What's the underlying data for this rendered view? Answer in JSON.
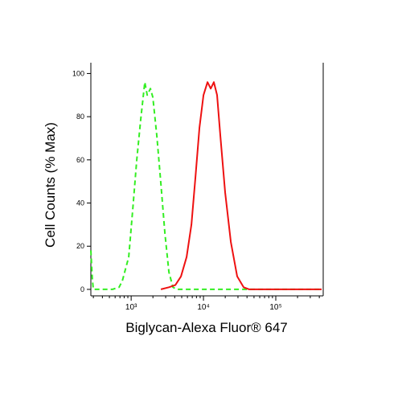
{
  "chart_data": {
    "type": "line",
    "x_label": "Biglycan-Alexa Fluor® 647",
    "y_label": "Cell Counts (% Max)",
    "xscale": "log",
    "xlim": [
      277,
      453000
    ],
    "ylim": [
      -3,
      105
    ],
    "yticks": [
      0,
      20,
      40,
      60,
      80,
      100
    ],
    "xticks": [
      {
        "value": 1000,
        "label": "10³"
      },
      {
        "value": 10000,
        "label": "10⁴"
      },
      {
        "value": 100000,
        "label": "10⁵"
      }
    ],
    "xminorticks": [
      300,
      400,
      500,
      600,
      700,
      800,
      900,
      2000,
      3000,
      4000,
      5000,
      6000,
      7000,
      8000,
      9000,
      20000,
      30000,
      40000,
      50000,
      60000,
      70000,
      80000,
      90000,
      200000,
      300000,
      400000
    ],
    "series": [
      {
        "color": "#33ee22",
        "dashed": true,
        "x": [
          277,
          290,
          300,
          550,
          681,
          755,
          926,
          1052,
          1196,
          1359,
          1545,
          1668,
          1848,
          1995,
          2268,
          2578,
          2929,
          3329,
          3783,
          4298,
          430000
        ],
        "values": [
          18,
          5,
          0,
          0,
          1,
          4,
          15,
          37,
          60,
          79,
          96,
          90,
          93,
          89,
          71,
          49,
          26,
          8,
          1,
          0,
          0
        ]
      },
      {
        "color": "#ee1111",
        "dashed": false,
        "x": [
          2578,
          3329,
          4084,
          4887,
          5843,
          6813,
          7743,
          8799,
          10000,
          11365,
          12589,
          13932,
          15442,
          17113,
          19953,
          23878,
          29286,
          35938,
          42987,
          430000
        ],
        "values": [
          0,
          1,
          2,
          6,
          15,
          30,
          52,
          75,
          90,
          96,
          93,
          96,
          90,
          71,
          45,
          22,
          6,
          1,
          0,
          0
        ]
      }
    ]
  }
}
